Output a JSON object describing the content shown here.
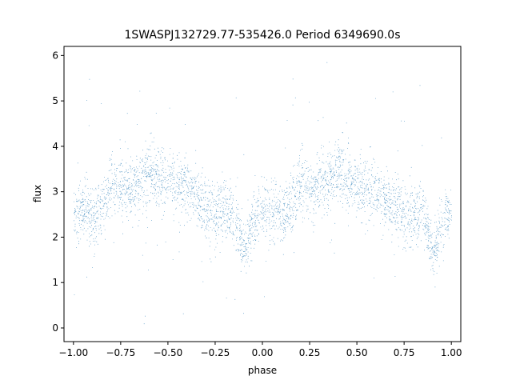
{
  "chart_data": {
    "type": "scatter",
    "title": "1SWASPJ132729.77-535426.0 Period 6349690.0s",
    "xlabel": "phase",
    "ylabel": "flux",
    "xlim": [
      -1.05,
      1.05
    ],
    "ylim": [
      -0.3,
      6.2
    ],
    "xticks": [
      -1.0,
      -0.75,
      -0.5,
      -0.25,
      0.0,
      0.25,
      0.5,
      0.75,
      1.0
    ],
    "xtick_labels": [
      "−1.00",
      "−0.75",
      "−0.50",
      "−0.25",
      "0.00",
      "0.25",
      "0.50",
      "0.75",
      "1.00"
    ],
    "yticks": [
      0,
      1,
      2,
      3,
      4,
      5,
      6
    ],
    "ytick_labels": [
      "0",
      "1",
      "2",
      "3",
      "4",
      "5",
      "6"
    ],
    "grid": false,
    "series_color": "#1f77b4",
    "profile": {
      "phase": [
        -1.0,
        -0.95,
        -0.9,
        -0.85,
        -0.8,
        -0.75,
        -0.7,
        -0.65,
        -0.6,
        -0.55,
        -0.5,
        -0.45,
        -0.4,
        -0.35,
        -0.3,
        -0.25,
        -0.2,
        -0.15,
        -0.1,
        -0.05,
        0.0,
        0.05,
        0.1,
        0.15,
        0.2,
        0.25,
        0.3,
        0.35,
        0.4,
        0.45,
        0.5,
        0.55,
        0.6,
        0.65,
        0.7,
        0.75,
        0.8,
        0.85,
        0.9,
        0.95,
        1.0
      ],
      "flux": [
        2.5,
        2.6,
        2.4,
        2.6,
        3.2,
        3.1,
        3.1,
        3.2,
        3.4,
        3.3,
        3.2,
        3.2,
        3.1,
        2.9,
        2.7,
        2.4,
        2.6,
        2.5,
        1.7,
        2.3,
        2.6,
        2.6,
        2.4,
        2.7,
        3.2,
        3.1,
        3.2,
        3.3,
        3.5,
        3.3,
        3.2,
        3.0,
        3.0,
        2.8,
        2.7,
        2.5,
        2.5,
        2.6,
        1.6,
        2.3,
        2.5
      ],
      "scatter": [
        0.4,
        0.45,
        0.5,
        0.5,
        0.45,
        0.45,
        0.4,
        0.45,
        0.5,
        0.5,
        0.45,
        0.45,
        0.45,
        0.45,
        0.5,
        0.5,
        0.45,
        0.45,
        0.35,
        0.45,
        0.45,
        0.45,
        0.5,
        0.5,
        0.45,
        0.45,
        0.45,
        0.45,
        0.5,
        0.5,
        0.45,
        0.45,
        0.45,
        0.45,
        0.5,
        0.5,
        0.45,
        0.45,
        0.35,
        0.45,
        0.4
      ]
    }
  }
}
